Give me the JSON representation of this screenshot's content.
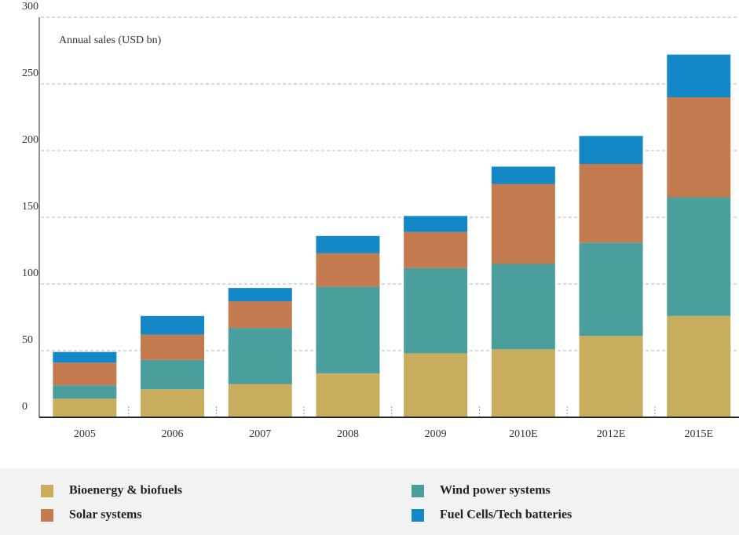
{
  "chart_data": {
    "type": "stacked_bar",
    "annotation": "Annual sales (USD bn)",
    "categories": [
      "2005",
      "2006",
      "2007",
      "2008",
      "2009",
      "2010E",
      "2012E",
      "2015E"
    ],
    "series": [
      {
        "name": "Bioenergy & biofuels",
        "color": "#c9ad5e",
        "values": [
          14,
          21,
          25,
          33,
          48,
          51,
          61,
          76
        ]
      },
      {
        "name": "Wind power systems",
        "color": "#4a9e9c",
        "values": [
          10,
          22,
          42,
          65,
          64,
          64,
          70,
          89
        ]
      },
      {
        "name": "Solar systems",
        "color": "#c47a4f",
        "values": [
          17,
          19,
          20,
          25,
          27,
          60,
          59,
          75
        ]
      },
      {
        "name": "Fuel Cells/Tech batteries",
        "color": "#1487c6",
        "values": [
          8,
          14,
          10,
          13,
          12,
          13,
          21,
          32
        ]
      }
    ],
    "ylim": [
      0,
      300
    ],
    "yticks": [
      0,
      50,
      100,
      150,
      200,
      250,
      300
    ],
    "grid": true
  }
}
